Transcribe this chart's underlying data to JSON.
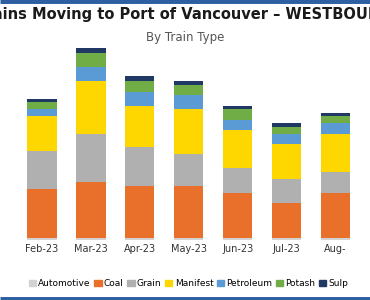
{
  "title": "Trains Moving to Port of Vancouver – WESTBOUND",
  "subtitle": "By Train Type",
  "months": [
    "Feb-23",
    "Mar-23",
    "Apr-23",
    "May-23",
    "Jun-23",
    "Jul-23",
    "Aug-"
  ],
  "categories": [
    "Automotive",
    "Coal",
    "Grain",
    "Manifest",
    "Petroleum",
    "Potash",
    "Sulp"
  ],
  "colors": [
    "#d3d3d3",
    "#e8702a",
    "#b0b0b0",
    "#ffd700",
    "#5b9bd5",
    "#70ad47",
    "#1f3864"
  ],
  "data": {
    "Automotive": [
      1,
      1,
      1,
      1,
      1,
      1,
      1
    ],
    "Coal": [
      28,
      32,
      30,
      30,
      26,
      20,
      26
    ],
    "Grain": [
      22,
      28,
      22,
      18,
      14,
      14,
      12
    ],
    "Manifest": [
      20,
      30,
      24,
      26,
      22,
      20,
      22
    ],
    "Petroleum": [
      4,
      8,
      8,
      8,
      6,
      6,
      6
    ],
    "Potash": [
      4,
      8,
      6,
      6,
      6,
      4,
      4
    ],
    "Sulp": [
      2,
      4,
      3,
      2,
      2,
      2,
      2
    ]
  },
  "background_color": "#ffffff",
  "title_fontsize": 10.5,
  "subtitle_fontsize": 8.5,
  "legend_fontsize": 6.5,
  "tick_fontsize": 7,
  "border_color": "#2e5fa3",
  "border_width": 5,
  "ylim": [
    0,
    110
  ],
  "grid_color": "#e8e8e8",
  "grid_linewidth": 0.8
}
